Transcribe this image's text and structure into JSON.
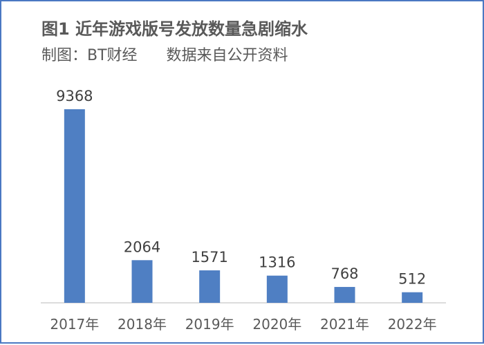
{
  "chart_data": {
    "type": "bar",
    "title": "图1 近年游戏版号发放数量急剧缩水",
    "subtitle": "制图：BT财经      数据来自公开资料",
    "categories": [
      "2017年",
      "2018年",
      "2019年",
      "2020年",
      "2021年",
      "2022年"
    ],
    "values": [
      9368,
      2064,
      1571,
      1316,
      768,
      512
    ],
    "ylim": [
      0,
      9368
    ],
    "grid": false,
    "legend": "none",
    "bar_color": "#4f7fc3",
    "axis_color": "#d0d0d0"
  }
}
